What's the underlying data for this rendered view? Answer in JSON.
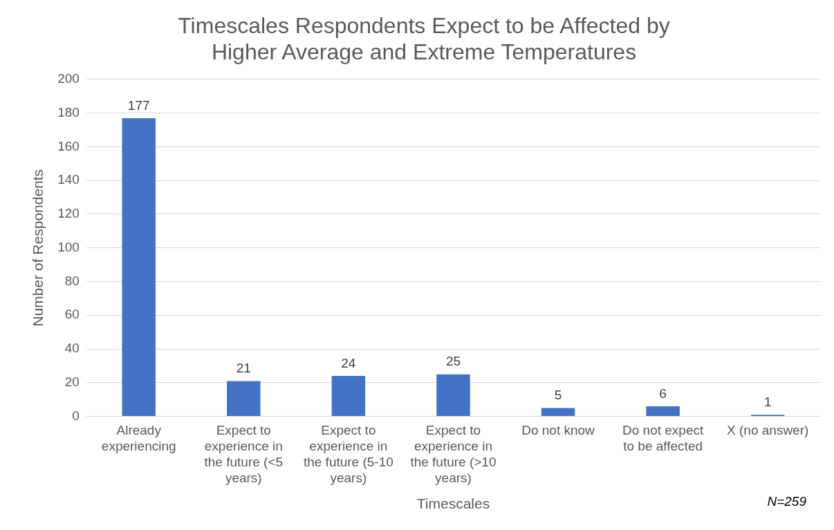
{
  "chart_data": {
    "type": "bar",
    "title": "Timescales Respondents Expect to be Affected by Higher Average and Extreme Temperatures",
    "xlabel": "Timescales",
    "ylabel": "Number of Respondents",
    "categories": [
      "Already experiencing",
      "Expect to experience in the future (<5 years)",
      "Expect to experience in the future (5-10 years)",
      "Expect to experience in the future (>10 years)",
      "Do not know",
      "Do not expect to be affected",
      "X (no answer)"
    ],
    "values": [
      177,
      21,
      24,
      25,
      5,
      6,
      1
    ],
    "color": "#4472c4",
    "ylim": [
      0,
      200
    ],
    "yticks": [
      0,
      20,
      40,
      60,
      80,
      100,
      120,
      140,
      160,
      180,
      200
    ],
    "grid": "y",
    "legend": false,
    "data_labels": true,
    "annotations": [
      "N=259"
    ]
  }
}
